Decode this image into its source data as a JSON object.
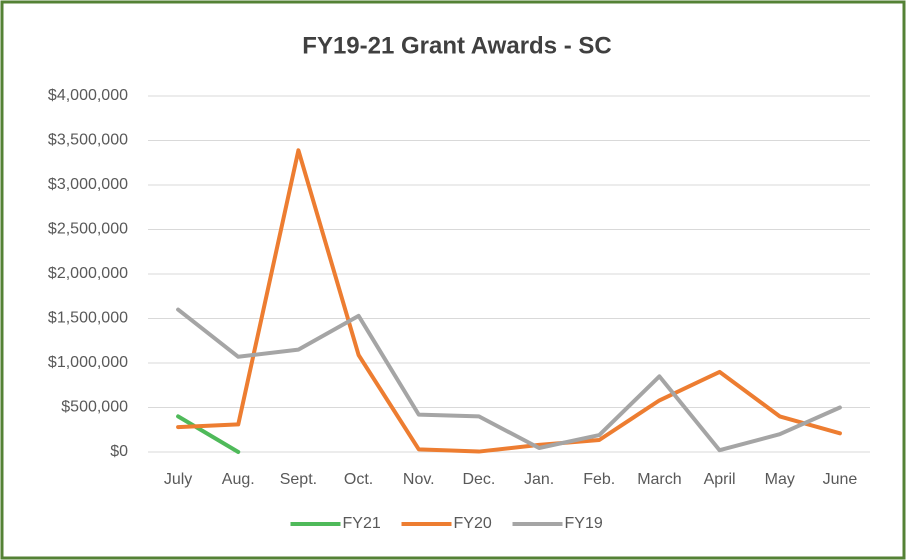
{
  "chart_data": {
    "type": "line",
    "title": "FY19-21 Grant Awards - SC",
    "categories": [
      "July",
      "Aug.",
      "Sept.",
      "Oct.",
      "Nov.",
      "Dec.",
      "Jan.",
      "Feb.",
      "March",
      "April",
      "May",
      "June"
    ],
    "series": [
      {
        "name": "FY21",
        "color": "#4fba5a",
        "values": [
          400000,
          0,
          null,
          null,
          null,
          null,
          null,
          null,
          null,
          null,
          null,
          null
        ]
      },
      {
        "name": "FY20",
        "color": "#ed7d31",
        "values": [
          280000,
          310000,
          3390000,
          1090000,
          30000,
          5000,
          80000,
          135000,
          580000,
          900000,
          400000,
          210000
        ]
      },
      {
        "name": "FY19",
        "color": "#a5a5a5",
        "values": [
          1600000,
          1070000,
          1150000,
          1530000,
          420000,
          400000,
          45000,
          190000,
          850000,
          20000,
          200000,
          500000
        ]
      }
    ],
    "ylim": [
      0,
      4000000
    ],
    "yticks": [
      {
        "value": 0,
        "label": "$0"
      },
      {
        "value": 500000,
        "label": "$500,000"
      },
      {
        "value": 1000000,
        "label": "$1,000,000"
      },
      {
        "value": 1500000,
        "label": "$1,500,000"
      },
      {
        "value": 2000000,
        "label": "$2,000,000"
      },
      {
        "value": 2500000,
        "label": "$2,500,000"
      },
      {
        "value": 3000000,
        "label": "$3,000,000"
      },
      {
        "value": 3500000,
        "label": "$3,500,000"
      },
      {
        "value": 4000000,
        "label": "$4,000,000"
      }
    ],
    "grid": true,
    "legend": "bottom"
  }
}
